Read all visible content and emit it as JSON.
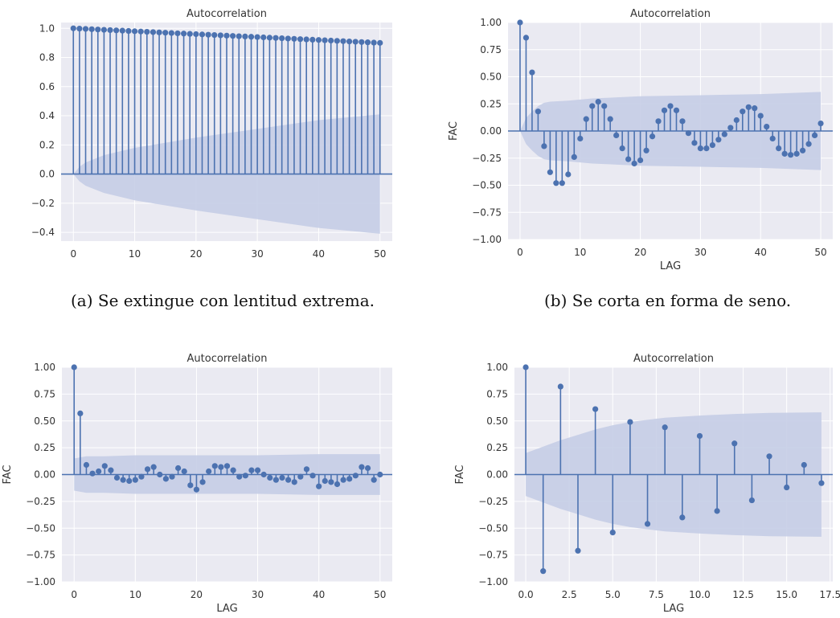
{
  "figure": {
    "captions": {
      "a": "(a) Se extingue con lentitud extrema.",
      "b": "(b) Se corta en forma de seno."
    }
  },
  "style": {
    "plot_bg": "#eaeaf2",
    "grid": "#ffffff",
    "series_color": "#4c72b0",
    "band_color": "#c5cde6",
    "tick_text": "#333333"
  },
  "chart_data": [
    {
      "id": "a",
      "type": "stem",
      "title": "Autocorrelation",
      "xlabel": "",
      "ylabel": "",
      "xlim": [
        -2,
        52
      ],
      "ylim": [
        -0.46,
        1.04
      ],
      "xticks": [
        0,
        10,
        20,
        30,
        40,
        50
      ],
      "xtick_labels": [
        "0",
        "10",
        "20",
        "30",
        "40",
        "50"
      ],
      "yticks": [
        -0.4,
        -0.2,
        0.0,
        0.2,
        0.4,
        0.6,
        0.8,
        1.0
      ],
      "ytick_labels": [
        "−0.4",
        "−0.2",
        "0.0",
        "0.2",
        "0.4",
        "0.6",
        "0.8",
        "1.0"
      ],
      "lags": [
        0,
        1,
        2,
        3,
        4,
        5,
        6,
        7,
        8,
        9,
        10,
        11,
        12,
        13,
        14,
        15,
        16,
        17,
        18,
        19,
        20,
        21,
        22,
        23,
        24,
        25,
        26,
        27,
        28,
        29,
        30,
        31,
        32,
        33,
        34,
        35,
        36,
        37,
        38,
        39,
        40,
        41,
        42,
        43,
        44,
        45,
        46,
        47,
        48,
        49,
        50
      ],
      "values": [
        1.0,
        0.998,
        0.996,
        0.994,
        0.992,
        0.99,
        0.988,
        0.986,
        0.984,
        0.982,
        0.98,
        0.978,
        0.976,
        0.974,
        0.972,
        0.97,
        0.968,
        0.966,
        0.964,
        0.962,
        0.96,
        0.958,
        0.956,
        0.954,
        0.952,
        0.95,
        0.948,
        0.946,
        0.944,
        0.942,
        0.94,
        0.938,
        0.936,
        0.934,
        0.932,
        0.93,
        0.928,
        0.926,
        0.924,
        0.922,
        0.92,
        0.918,
        0.916,
        0.914,
        0.912,
        0.91,
        0.908,
        0.906,
        0.904,
        0.902,
        0.9
      ],
      "confidence_band": {
        "lags": [
          0,
          1,
          2,
          5,
          10,
          20,
          30,
          40,
          50
        ],
        "upper": [
          0.0,
          0.05,
          0.08,
          0.13,
          0.18,
          0.25,
          0.31,
          0.37,
          0.41
        ],
        "lower": [
          0.0,
          -0.05,
          -0.08,
          -0.13,
          -0.18,
          -0.25,
          -0.31,
          -0.37,
          -0.41
        ]
      }
    },
    {
      "id": "b",
      "type": "stem",
      "title": "Autocorrelation",
      "xlabel": "LAG",
      "ylabel": "FAC",
      "xlim": [
        -2,
        52
      ],
      "ylim": [
        -1.0,
        1.0
      ],
      "xticks": [
        0,
        10,
        20,
        30,
        40,
        50
      ],
      "xtick_labels": [
        "0",
        "10",
        "20",
        "30",
        "40",
        "50"
      ],
      "yticks": [
        -1.0,
        -0.75,
        -0.5,
        -0.25,
        0.0,
        0.25,
        0.5,
        0.75,
        1.0
      ],
      "ytick_labels": [
        "−1.00",
        "−0.75",
        "−0.50",
        "−0.25",
        "0.00",
        "0.25",
        "0.50",
        "0.75",
        "1.00"
      ],
      "lags": [
        0,
        1,
        2,
        3,
        4,
        5,
        6,
        7,
        8,
        9,
        10,
        11,
        12,
        13,
        14,
        15,
        16,
        17,
        18,
        19,
        20,
        21,
        22,
        23,
        24,
        25,
        26,
        27,
        28,
        29,
        30,
        31,
        32,
        33,
        34,
        35,
        36,
        37,
        38,
        39,
        40,
        41,
        42,
        43,
        44,
        45,
        46,
        47,
        48,
        49,
        50
      ],
      "values": [
        1.0,
        0.86,
        0.54,
        0.18,
        -0.14,
        -0.38,
        -0.48,
        -0.48,
        -0.4,
        -0.24,
        -0.07,
        0.11,
        0.23,
        0.27,
        0.23,
        0.11,
        -0.04,
        -0.16,
        -0.26,
        -0.3,
        -0.27,
        -0.18,
        -0.05,
        0.09,
        0.19,
        0.23,
        0.19,
        0.09,
        -0.02,
        -0.11,
        -0.16,
        -0.16,
        -0.13,
        -0.08,
        -0.03,
        0.03,
        0.1,
        0.18,
        0.22,
        0.21,
        0.14,
        0.04,
        -0.07,
        -0.16,
        -0.21,
        -0.22,
        -0.21,
        -0.18,
        -0.12,
        -0.04,
        0.07
      ],
      "confidence_band": {
        "lags": [
          0,
          1,
          2,
          3,
          4,
          5,
          8,
          12,
          20,
          30,
          40,
          50
        ],
        "upper": [
          0.0,
          0.12,
          0.18,
          0.23,
          0.26,
          0.27,
          0.28,
          0.3,
          0.32,
          0.33,
          0.34,
          0.36
        ],
        "lower": [
          0.0,
          -0.12,
          -0.18,
          -0.23,
          -0.26,
          -0.27,
          -0.28,
          -0.3,
          -0.32,
          -0.33,
          -0.34,
          -0.36
        ]
      }
    },
    {
      "id": "c",
      "type": "stem",
      "title": "Autocorrelation",
      "xlabel": "LAG",
      "ylabel": "FAC",
      "xlim": [
        -2,
        52
      ],
      "ylim": [
        -1.0,
        1.0
      ],
      "xticks": [
        0,
        10,
        20,
        30,
        40,
        50
      ],
      "xtick_labels": [
        "0",
        "10",
        "20",
        "30",
        "40",
        "50"
      ],
      "yticks": [
        -1.0,
        -0.75,
        -0.5,
        -0.25,
        0.0,
        0.25,
        0.5,
        0.75,
        1.0
      ],
      "ytick_labels": [
        "−1.00",
        "−0.75",
        "−0.50",
        "−0.25",
        "0.00",
        "0.25",
        "0.50",
        "0.75",
        "1.00"
      ],
      "lags": [
        0,
        1,
        2,
        3,
        4,
        5,
        6,
        7,
        8,
        9,
        10,
        11,
        12,
        13,
        14,
        15,
        16,
        17,
        18,
        19,
        20,
        21,
        22,
        23,
        24,
        25,
        26,
        27,
        28,
        29,
        30,
        31,
        32,
        33,
        34,
        35,
        36,
        37,
        38,
        39,
        40,
        41,
        42,
        43,
        44,
        45,
        46,
        47,
        48,
        49,
        50
      ],
      "values": [
        1.0,
        0.57,
        0.09,
        0.01,
        0.03,
        0.08,
        0.04,
        -0.03,
        -0.05,
        -0.06,
        -0.05,
        -0.02,
        0.05,
        0.07,
        0.0,
        -0.04,
        -0.02,
        0.06,
        0.03,
        -0.1,
        -0.14,
        -0.07,
        0.03,
        0.08,
        0.07,
        0.08,
        0.04,
        -0.02,
        -0.01,
        0.04,
        0.04,
        0.0,
        -0.03,
        -0.05,
        -0.03,
        -0.05,
        -0.07,
        -0.02,
        0.05,
        -0.01,
        -0.11,
        -0.06,
        -0.07,
        -0.09,
        -0.05,
        -0.04,
        -0.01,
        0.07,
        0.06,
        -0.05,
        0.0
      ],
      "confidence_band": {
        "lags": [
          0,
          1,
          2,
          5,
          10,
          20,
          30,
          40,
          50
        ],
        "upper": [
          0.15,
          0.16,
          0.17,
          0.17,
          0.18,
          0.18,
          0.18,
          0.19,
          0.19
        ],
        "lower": [
          -0.15,
          -0.16,
          -0.17,
          -0.17,
          -0.18,
          -0.18,
          -0.18,
          -0.19,
          -0.19
        ]
      }
    },
    {
      "id": "d",
      "type": "stem",
      "title": "Autocorrelation",
      "xlabel": "LAG",
      "ylabel": "FAC",
      "xlim": [
        -0.65,
        17.65
      ],
      "ylim": [
        -1.0,
        1.0
      ],
      "xticks": [
        0,
        2.5,
        5,
        7.5,
        10,
        12.5,
        15,
        17.5
      ],
      "xtick_labels": [
        "0.0",
        "2.5",
        "5.0",
        "7.5",
        "10.0",
        "12.5",
        "15.0",
        "17.5"
      ],
      "yticks": [
        -1.0,
        -0.75,
        -0.5,
        -0.25,
        0.0,
        0.25,
        0.5,
        0.75,
        1.0
      ],
      "ytick_labels": [
        "−1.00",
        "−0.75",
        "−0.50",
        "−0.25",
        "0.00",
        "0.25",
        "0.50",
        "0.75",
        "1.00"
      ],
      "lags": [
        0,
        1,
        2,
        3,
        4,
        5,
        6,
        7,
        8,
        9,
        10,
        11,
        12,
        13,
        14,
        15,
        16,
        17
      ],
      "values": [
        1.0,
        -0.9,
        0.82,
        -0.71,
        0.61,
        -0.54,
        0.49,
        -0.46,
        0.44,
        -0.4,
        0.36,
        -0.34,
        0.29,
        -0.24,
        0.17,
        -0.12,
        0.09,
        -0.08
      ],
      "confidence_band": {
        "lags": [
          0,
          1,
          2,
          3,
          4,
          5,
          6,
          7,
          8,
          10,
          12,
          14,
          17
        ],
        "upper": [
          0.2,
          0.26,
          0.32,
          0.37,
          0.42,
          0.46,
          0.49,
          0.51,
          0.53,
          0.55,
          0.565,
          0.575,
          0.58
        ],
        "lower": [
          -0.2,
          -0.26,
          -0.32,
          -0.37,
          -0.42,
          -0.46,
          -0.49,
          -0.51,
          -0.53,
          -0.55,
          -0.565,
          -0.575,
          -0.58
        ]
      }
    }
  ]
}
